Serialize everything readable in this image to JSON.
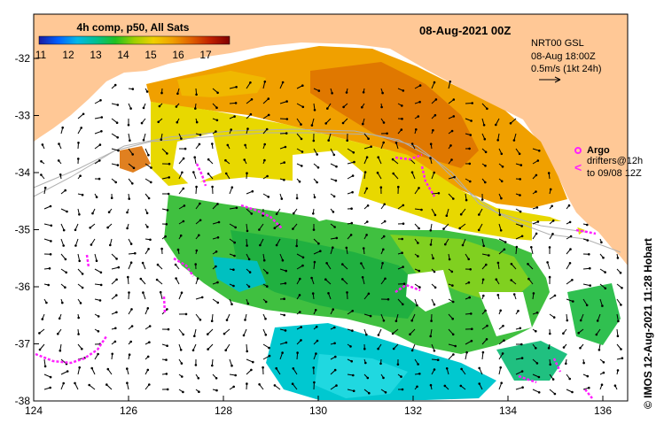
{
  "colorbar": {
    "title": "4h comp, p50, All Sats",
    "ticks": [
      "11",
      "12",
      "13",
      "14",
      "15",
      "16",
      "17"
    ],
    "colors": [
      "#1a1aa0",
      "#0060ff",
      "#00b8e8",
      "#00c090",
      "#20c020",
      "#9ed000",
      "#f0d000",
      "#f0a000",
      "#e06000",
      "#c02000",
      "#800000"
    ]
  },
  "date_title": "08-Aug-2021 00Z",
  "currents": {
    "source": "NRT00 GSL",
    "time": "08-Aug 18:00Z",
    "scale": "0.5m/s (1kt 24h)"
  },
  "legend": {
    "argo": "Argo",
    "drifters_line1": "drifters@12h",
    "drifters_line2": "to 09/08 12Z",
    "argo_color": "#ff20ff"
  },
  "credit": "© IMOS 12-Aug-2021 11:28 Hobart",
  "axes": {
    "x_ticks": [
      "124",
      "126",
      "128",
      "130",
      "132",
      "134",
      "136"
    ],
    "y_ticks": [
      "-32",
      "-33",
      "-34",
      "-35",
      "-36",
      "-37",
      "-38"
    ]
  },
  "land_color": "#ffc896"
}
